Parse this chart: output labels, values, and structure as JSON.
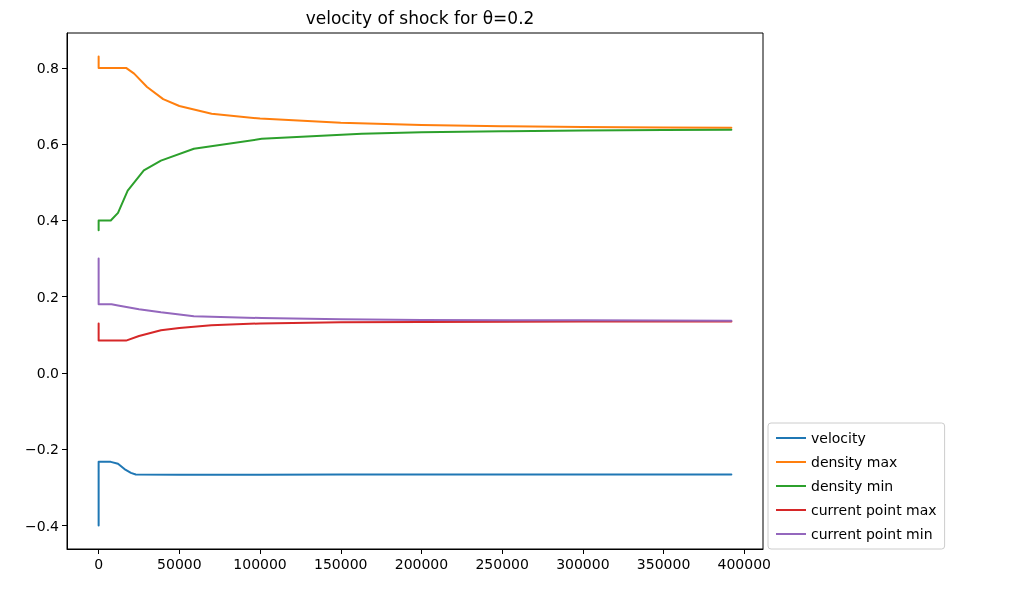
{
  "chart_data": {
    "type": "line",
    "title": "velocity of shock for θ=0.2",
    "xlim": [
      -19600,
      411600
    ],
    "xticks": [
      0,
      50000,
      100000,
      150000,
      200000,
      250000,
      300000,
      350000,
      400000
    ],
    "ylim": [
      -0.4615,
      0.8915
    ],
    "yticks": [
      {
        "value": -0.4,
        "label": "−0.4"
      },
      {
        "value": -0.2,
        "label": "−0.2"
      },
      {
        "value": 0,
        "label": "0.0"
      },
      0.2,
      0.4,
      0.6,
      0.8
    ],
    "grid": false,
    "legend": "bottom right",
    "marker": "none",
    "line_style": "solid",
    "series": [
      {
        "name": "velocity",
        "color": "#1f77b4",
        "x": [
          0,
          0,
          7500,
          12000,
          16000,
          20000,
          23000,
          50000,
          100000,
          150000,
          200000,
          250000,
          300000,
          350000,
          392000
        ],
        "values": [
          -0.4,
          -0.233,
          -0.233,
          -0.238,
          -0.252,
          -0.262,
          -0.266,
          -0.267,
          -0.267,
          -0.266,
          -0.266,
          -0.266,
          -0.266,
          -0.266,
          -0.266
        ]
      },
      {
        "name": "density max",
        "color": "#ff7f0e",
        "x": [
          0,
          0,
          17000,
          22000,
          30000,
          40000,
          50000,
          70000,
          100000,
          150000,
          200000,
          250000,
          300000,
          350000,
          392000
        ],
        "values": [
          0.83,
          0.8,
          0.8,
          0.785,
          0.75,
          0.718,
          0.7,
          0.68,
          0.667,
          0.656,
          0.65,
          0.647,
          0.645,
          0.644,
          0.643
        ]
      },
      {
        "name": "density min",
        "color": "#2ca02c",
        "x": [
          0,
          0,
          7500,
          12000,
          18000,
          28000,
          38600,
          59000,
          101000,
          163000,
          200000,
          250000,
          300000,
          350000,
          392000
        ],
        "values": [
          0.374,
          0.4,
          0.4,
          0.42,
          0.478,
          0.531,
          0.557,
          0.588,
          0.614,
          0.627,
          0.631,
          0.634,
          0.636,
          0.637,
          0.638
        ]
      },
      {
        "name": "current point max",
        "color": "#d62728",
        "x": [
          0,
          0,
          17000,
          25000,
          38600,
          50000,
          69800,
          100000,
          150000,
          200000,
          300000,
          392000
        ],
        "values": [
          0.13,
          0.085,
          0.085,
          0.097,
          0.112,
          0.118,
          0.125,
          0.13,
          0.133,
          0.134,
          0.135,
          0.135
        ]
      },
      {
        "name": "current point min",
        "color": "#9467bd",
        "x": [
          0,
          0,
          8000,
          12000,
          25000,
          38600,
          59000,
          101000,
          150000,
          200000,
          300000,
          392000
        ],
        "values": [
          0.3,
          0.18,
          0.18,
          0.177,
          0.167,
          0.159,
          0.149,
          0.144,
          0.141,
          0.139,
          0.138,
          0.137
        ]
      }
    ]
  }
}
